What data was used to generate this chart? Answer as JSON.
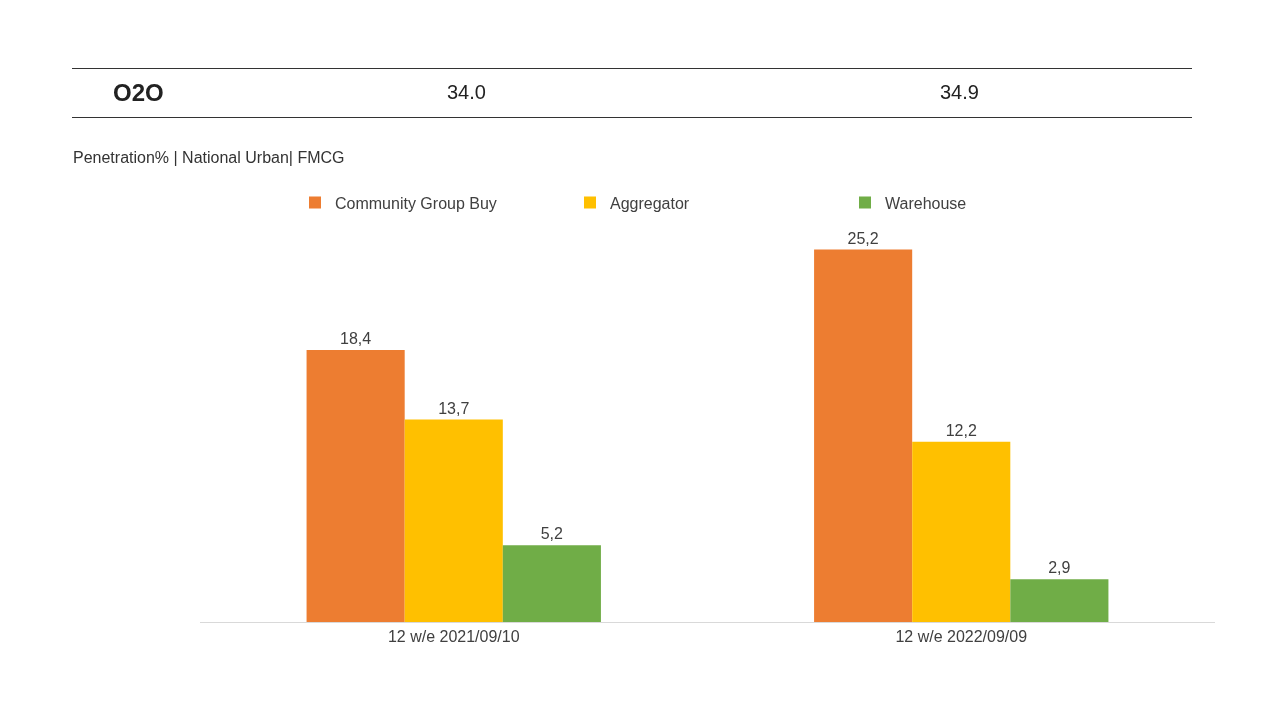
{
  "chart_data": {
    "type": "bar",
    "subtitle": "Penetration% | National Urban| FMCG",
    "annotations": [
      "O2O",
      "34.0",
      "34.9"
    ],
    "categories": [
      "12 w/e 2021/09/10",
      "12 w/e 2022/09/09"
    ],
    "series": [
      {
        "name": "Community Group Buy",
        "color": "#ed7d31",
        "values": [
          18.4,
          25.2
        ],
        "value_labels": [
          "18,4",
          "25,2"
        ]
      },
      {
        "name": "Aggregator",
        "color": "#ffc000",
        "values": [
          13.7,
          12.2
        ],
        "value_labels": [
          "13,7",
          "12,2"
        ]
      },
      {
        "name": "Warehouse",
        "color": "#70ad47",
        "values": [
          5.2,
          2.9
        ],
        "value_labels": [
          "5,2",
          "2,9"
        ]
      }
    ],
    "legend": "top",
    "grid": false,
    "tick_labels": "x"
  }
}
